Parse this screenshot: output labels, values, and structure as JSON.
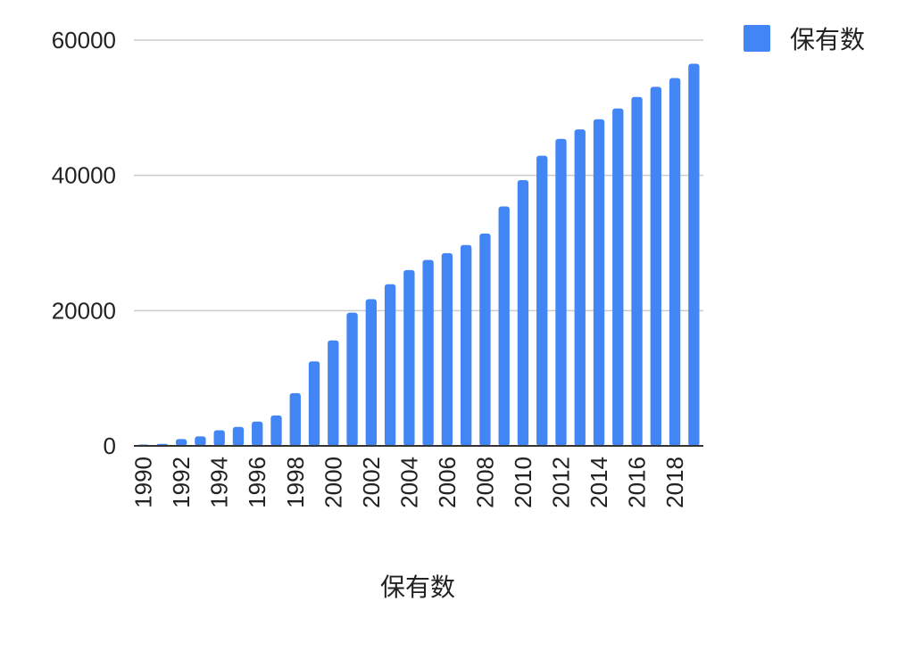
{
  "chart_data": {
    "type": "bar",
    "xlabel": "保有数",
    "ylabel": "",
    "ylim": [
      0,
      60000
    ],
    "y_ticks": [
      0,
      20000,
      40000,
      60000
    ],
    "grid": true,
    "legend_position": "top-right",
    "x_tick_labels": [
      "1990",
      "1992",
      "1994",
      "1996",
      "1998",
      "2000",
      "2002",
      "2004",
      "2006",
      "2008",
      "2010",
      "2012",
      "2014",
      "2016",
      "2018"
    ],
    "categories": [
      "1990",
      "1991",
      "1992",
      "1993",
      "1994",
      "1995",
      "1996",
      "1997",
      "1998",
      "1999",
      "2000",
      "2001",
      "2002",
      "2003",
      "2004",
      "2005",
      "2006",
      "2007",
      "2008",
      "2009",
      "2010",
      "2011",
      "2012",
      "2013",
      "2014",
      "2015",
      "2016",
      "2017",
      "2018",
      "2019"
    ],
    "series": [
      {
        "name": "保有数",
        "color": "#4285f4",
        "values": [
          200,
          300,
          1000,
          1400,
          2300,
          2800,
          3600,
          4500,
          7800,
          12500,
          15600,
          19700,
          21700,
          23900,
          26000,
          27500,
          28500,
          29700,
          31400,
          35400,
          39300,
          42900,
          45400,
          46800,
          48300,
          49900,
          51600,
          53100,
          54400,
          56500
        ]
      }
    ]
  }
}
